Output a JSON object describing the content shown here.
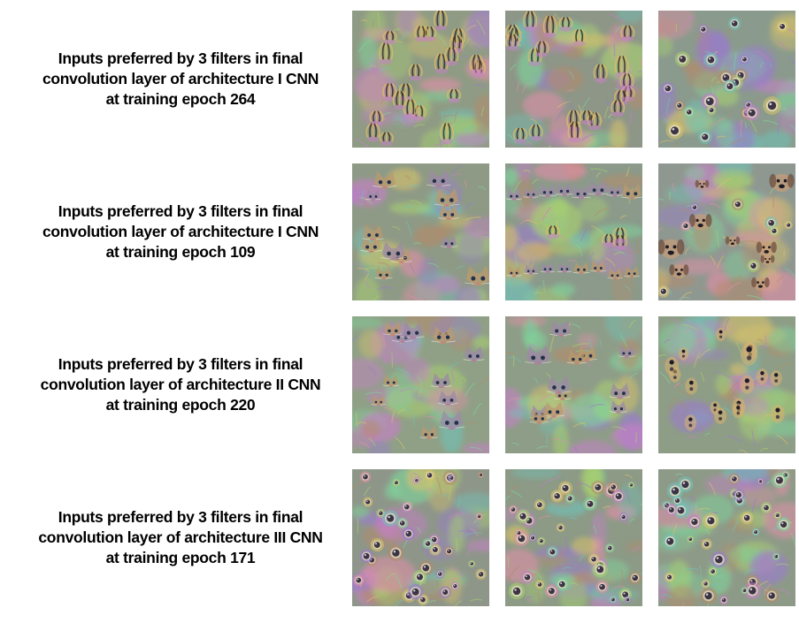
{
  "figure": {
    "rows": [
      {
        "caption_lines": [
          "Inputs preferred by 3 filters in final",
          "convolution layer of architecture I CNN",
          "at training epoch 264"
        ],
        "tiles": [
          {
            "motif": "fur-spikes",
            "base": "#8f9b84"
          },
          {
            "motif": "fur-spikes",
            "base": "#8d9687"
          },
          {
            "motif": "eyes",
            "base": "#8a9a8c"
          }
        ]
      },
      {
        "caption_lines": [
          "Inputs preferred by 3 filters in final",
          "convolution layer of architecture I CNN",
          "at training epoch 109"
        ],
        "tiles": [
          {
            "motif": "cat-faces",
            "base": "#8e9a86"
          },
          {
            "motif": "cat-ears-border",
            "base": "#8b9a8a"
          },
          {
            "motif": "dog-faces",
            "base": "#8f9890"
          }
        ]
      },
      {
        "caption_lines": [
          "Inputs preferred by 3 filters in final",
          "convolution layer of architecture II CNN",
          "at training epoch 220"
        ],
        "tiles": [
          {
            "motif": "cat-faces",
            "base": "#8fa086"
          },
          {
            "motif": "cat-faces",
            "base": "#8e9d88"
          },
          {
            "motif": "dog-noses",
            "base": "#8e9d86"
          }
        ]
      },
      {
        "caption_lines": [
          "Inputs preferred by 3 filters in final",
          "convolution layer of architecture III CNN",
          "at training epoch 171"
        ],
        "tiles": [
          {
            "motif": "eyes-dense",
            "base": "#8e9689"
          },
          {
            "motif": "eyes-dense",
            "base": "#8c9a86"
          },
          {
            "motif": "eyes-dense",
            "base": "#8e9a88"
          }
        ]
      }
    ]
  }
}
